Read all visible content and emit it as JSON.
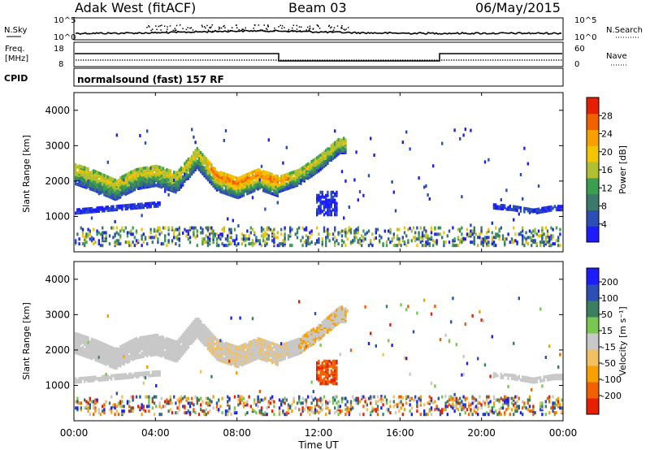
{
  "header": {
    "station": "Adak West (fitACF)",
    "beam": "Beam 03",
    "date": "06/May/2015"
  },
  "panels": {
    "nsky": {
      "left_label": "N.Sky",
      "left_ticks": [
        "10^5",
        "10^0"
      ],
      "right_label": "N.Search",
      "right_ticks": [
        "10^5",
        "10^0"
      ]
    },
    "freq": {
      "left_label_line1": "Freq.",
      "left_label_line2": "[MHz]",
      "left_ticks": [
        "18",
        "8"
      ],
      "right_label": "Nave",
      "right_ticks": [
        "60",
        "0"
      ]
    },
    "cpid": {
      "label": "CPID",
      "text": "normalsound (fast) 157 RF"
    }
  },
  "colors": {
    "power": [
      "#1c1cff",
      "#2b4fb5",
      "#3b7a6a",
      "#3aa050",
      "#b0c030",
      "#f5c400",
      "#f7a000",
      "#f26000",
      "#e81e00"
    ],
    "velocity": [
      "#e81e00",
      "#f26000",
      "#f7a000",
      "#f2c060",
      "#c8c8c8",
      "#78c850",
      "#3a8060",
      "#2b4fb5",
      "#1c1cff"
    ],
    "velocity_background": "#c8c8c8",
    "power_background": "#3a9a60"
  },
  "chart_data": [
    {
      "type": "heatmap",
      "title": "Power",
      "xlabel": "",
      "ylabel": "Slant Range [km]",
      "x_ticks": [
        "00:00",
        "04:00",
        "08:00",
        "12:00",
        "16:00",
        "20:00",
        "00:00"
      ],
      "y_ticks": [
        1000,
        2000,
        3000,
        4000
      ],
      "ylim": [
        0,
        4500
      ],
      "colorbar": {
        "label": "Power [dB]",
        "ticks": [
          4,
          8,
          12,
          16,
          20,
          24,
          28
        ],
        "range": [
          0,
          32
        ]
      },
      "series": [
        {
          "name": "band_upper",
          "x_hours": [
            0,
            1,
            2,
            3,
            4,
            5,
            6,
            7,
            8,
            9,
            10,
            11,
            12,
            13
          ],
          "range_km": [
            2350,
            2150,
            1900,
            2200,
            2300,
            2100,
            2800,
            2150,
            1950,
            2200,
            2000,
            2200,
            2600,
            3100
          ]
        },
        {
          "name": "band_lower",
          "x_hours": [
            0,
            1,
            2,
            3,
            4
          ],
          "range_km": [
            1150,
            1200,
            1250,
            1300,
            1350
          ]
        },
        {
          "name": "late_band",
          "x_hours": [
            20.5,
            21.5,
            22.5,
            23.5
          ],
          "range_km": [
            1300,
            1250,
            1150,
            1250
          ]
        }
      ]
    },
    {
      "type": "heatmap",
      "title": "Velocity",
      "xlabel": "Time UT",
      "ylabel": "Slant Range [km]",
      "x_ticks": [
        "00:00",
        "04:00",
        "08:00",
        "12:00",
        "16:00",
        "20:00",
        "00:00"
      ],
      "y_ticks": [
        1000,
        2000,
        3000,
        4000
      ],
      "ylim": [
        0,
        4500
      ],
      "colorbar": {
        "label": "Velocity [m s⁻¹]",
        "ticks": [
          200,
          100,
          50,
          15,
          -15,
          -50,
          -100,
          -200
        ]
      }
    }
  ]
}
